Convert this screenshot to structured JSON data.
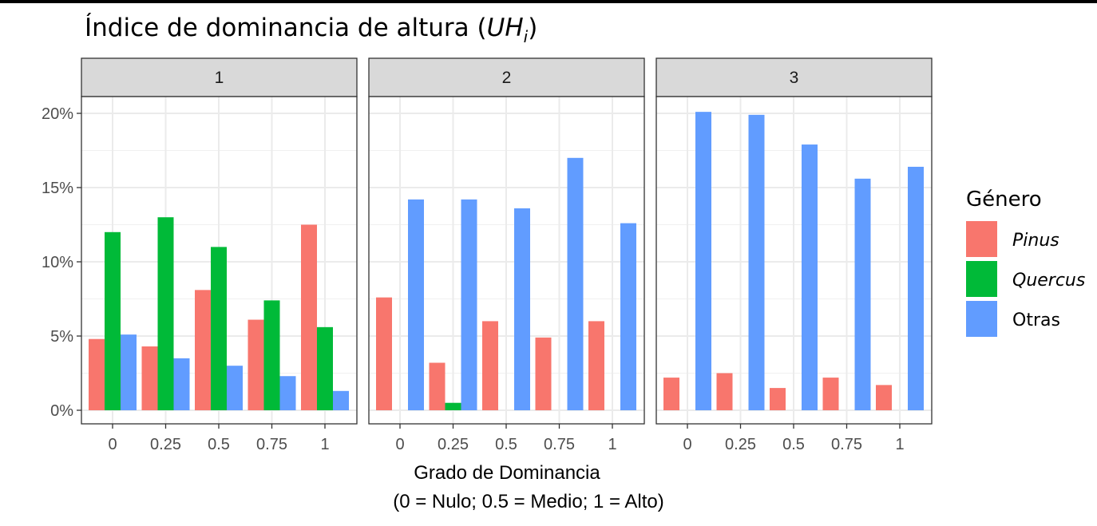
{
  "title": {
    "prefix": "Índice de dominancia de altura (",
    "var": "UH",
    "sub": "i",
    "suffix": ")"
  },
  "chart_data": {
    "type": "bar",
    "facets": [
      "1",
      "2",
      "3"
    ],
    "categories": [
      "0",
      "0.25",
      "0.5",
      "0.75",
      "1"
    ],
    "xlabel": "Grado de Dominancia",
    "xlabel_line2": "(0 = Nulo; 0.5 = Medio; 1 = Alto)",
    "ylabel": "",
    "ylim": [
      0,
      0.2
    ],
    "y_ticks": [
      0,
      0.05,
      0.1,
      0.15,
      0.2
    ],
    "y_tick_labels": [
      "0%",
      "5%",
      "10%",
      "15%",
      "20%"
    ],
    "legend_position": "right",
    "legend_title": "Género",
    "grid": true,
    "series": [
      {
        "name": "Pinus",
        "italic": true,
        "color": "#F8766D",
        "values": [
          [
            0.048,
            0.043,
            0.081,
            0.061,
            0.125
          ],
          [
            0.076,
            0.032,
            0.06,
            0.049,
            0.06
          ],
          [
            0.022,
            0.025,
            0.015,
            0.022,
            0.017
          ]
        ]
      },
      {
        "name": "Quercus",
        "italic": true,
        "color": "#00BA38",
        "values": [
          [
            0.12,
            0.13,
            0.11,
            0.074,
            0.056
          ],
          [
            null,
            0.005,
            null,
            null,
            null
          ],
          [
            null,
            null,
            null,
            null,
            null
          ]
        ]
      },
      {
        "name": "Otras",
        "italic": false,
        "color": "#619CFF",
        "values": [
          [
            0.051,
            0.035,
            0.03,
            0.023,
            0.013
          ],
          [
            0.142,
            0.142,
            0.136,
            0.17,
            0.126
          ],
          [
            0.201,
            0.199,
            0.179,
            0.156,
            0.164
          ]
        ]
      }
    ]
  }
}
